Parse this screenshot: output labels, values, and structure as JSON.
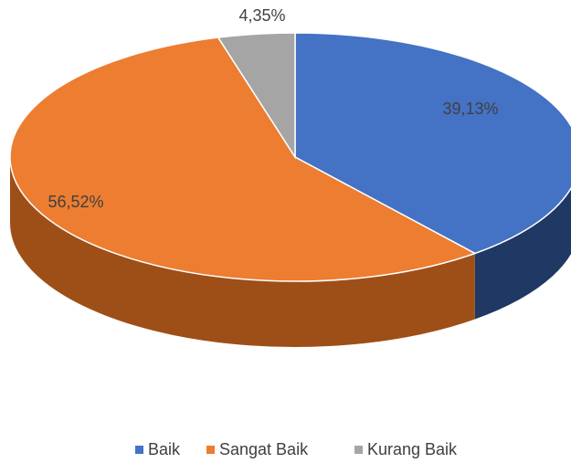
{
  "chart_data": {
    "type": "pie3d",
    "categories": [
      "Baik",
      "Sangat Baik",
      "Kurang Baik"
    ],
    "values": [
      39.13,
      56.52,
      4.35
    ],
    "value_labels": [
      "39,13%",
      "56,52%",
      "4,35%"
    ],
    "colors": [
      "#4472c4",
      "#ed7d31",
      "#a5a5a5"
    ],
    "side_colors": [
      "#1f3864",
      "#9e4f17",
      "#6e6e6e"
    ],
    "legend": "bottom"
  }
}
